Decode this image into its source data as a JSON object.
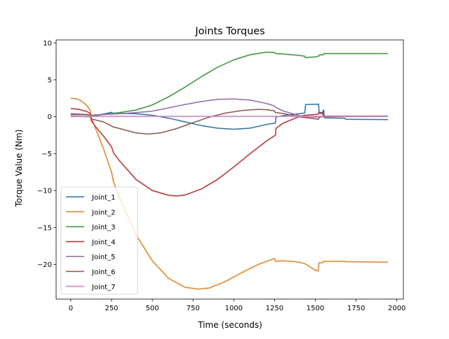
{
  "chart_data": {
    "type": "line",
    "title": "Joints Torques",
    "xlabel": "Time (seconds)",
    "ylabel": "Torque Value (Nm)",
    "xlim": [
      -90,
      2040
    ],
    "ylim": [
      -24.7,
      10.4
    ],
    "xticks": [
      0,
      250,
      500,
      750,
      1000,
      1250,
      1500,
      1750,
      2000
    ],
    "yticks": [
      10,
      5,
      0,
      -5,
      -10,
      -15,
      -20
    ],
    "grid": false,
    "legend_position": "lower-left",
    "series": [
      {
        "name": "Joint_1",
        "color": "#1f77b4",
        "points": [
          [
            0,
            0.1
          ],
          [
            120,
            0.0
          ],
          [
            150,
            0.2
          ],
          [
            200,
            0.35
          ],
          [
            250,
            0.6
          ],
          [
            262,
            0.4
          ],
          [
            300,
            0.45
          ],
          [
            400,
            0.4
          ],
          [
            500,
            0.2
          ],
          [
            600,
            -0.2
          ],
          [
            700,
            -0.7
          ],
          [
            800,
            -1.2
          ],
          [
            900,
            -1.55
          ],
          [
            1000,
            -1.7
          ],
          [
            1100,
            -1.55
          ],
          [
            1200,
            -1.05
          ],
          [
            1255,
            -0.85
          ],
          [
            1258,
            -0.05
          ],
          [
            1300,
            0.15
          ],
          [
            1400,
            0.4
          ],
          [
            1435,
            0.5
          ],
          [
            1440,
            1.65
          ],
          [
            1520,
            1.7
          ],
          [
            1523,
            0.45
          ],
          [
            1545,
            0.4
          ],
          [
            1548,
            0.9
          ],
          [
            1552,
            0.85
          ],
          [
            1556,
            -0.15
          ],
          [
            1680,
            -0.2
          ],
          [
            1685,
            -0.35
          ],
          [
            1945,
            -0.4
          ]
        ]
      },
      {
        "name": "Joint_2",
        "color": "#ff7f0e",
        "points": [
          [
            0,
            2.5
          ],
          [
            30,
            2.45
          ],
          [
            60,
            2.2
          ],
          [
            90,
            1.7
          ],
          [
            110,
            1.2
          ],
          [
            120,
            0.8
          ],
          [
            125,
            -0.1
          ],
          [
            150,
            -1.5
          ],
          [
            200,
            -4.3
          ],
          [
            250,
            -7.5
          ],
          [
            262,
            -8.8
          ],
          [
            300,
            -11
          ],
          [
            400,
            -16
          ],
          [
            500,
            -19.5
          ],
          [
            600,
            -21.9
          ],
          [
            700,
            -23.1
          ],
          [
            780,
            -23.35
          ],
          [
            850,
            -23.2
          ],
          [
            950,
            -22.3
          ],
          [
            1050,
            -21.1
          ],
          [
            1150,
            -20
          ],
          [
            1250,
            -19.2
          ],
          [
            1255,
            -19.6
          ],
          [
            1300,
            -19.5
          ],
          [
            1400,
            -19.7
          ],
          [
            1435,
            -19.9
          ],
          [
            1500,
            -20.8
          ],
          [
            1518,
            -20.9
          ],
          [
            1522,
            -19.8
          ],
          [
            1545,
            -19.8
          ],
          [
            1550,
            -19.6
          ],
          [
            1680,
            -19.6
          ],
          [
            1685,
            -19.65
          ],
          [
            1945,
            -19.7
          ]
        ]
      },
      {
        "name": "Joint_3",
        "color": "#2ca02c",
        "points": [
          [
            0,
            0.05
          ],
          [
            120,
            0.0
          ],
          [
            150,
            0.15
          ],
          [
            250,
            0.45
          ],
          [
            300,
            0.55
          ],
          [
            400,
            0.9
          ],
          [
            500,
            1.6
          ],
          [
            600,
            2.7
          ],
          [
            700,
            4.0
          ],
          [
            800,
            5.4
          ],
          [
            900,
            6.7
          ],
          [
            1000,
            7.7
          ],
          [
            1100,
            8.4
          ],
          [
            1200,
            8.75
          ],
          [
            1250,
            8.7
          ],
          [
            1255,
            8.55
          ],
          [
            1300,
            8.5
          ],
          [
            1400,
            8.3
          ],
          [
            1435,
            8.2
          ],
          [
            1440,
            8.0
          ],
          [
            1500,
            8.1
          ],
          [
            1520,
            8.2
          ],
          [
            1523,
            8.35
          ],
          [
            1550,
            8.4
          ],
          [
            1553,
            8.55
          ],
          [
            1945,
            8.55
          ]
        ]
      },
      {
        "name": "Joint_4",
        "color": "#d62728",
        "points": [
          [
            0,
            1.1
          ],
          [
            50,
            1.0
          ],
          [
            100,
            0.7
          ],
          [
            120,
            0.4
          ],
          [
            125,
            -0.5
          ],
          [
            150,
            -1.3
          ],
          [
            200,
            -2.6
          ],
          [
            250,
            -4.1
          ],
          [
            262,
            -4.9
          ],
          [
            300,
            -6.0
          ],
          [
            400,
            -8.5
          ],
          [
            500,
            -10.0
          ],
          [
            600,
            -10.65
          ],
          [
            650,
            -10.75
          ],
          [
            700,
            -10.6
          ],
          [
            800,
            -9.8
          ],
          [
            900,
            -8.5
          ],
          [
            1000,
            -6.8
          ],
          [
            1100,
            -5.0
          ],
          [
            1200,
            -3.3
          ],
          [
            1255,
            -2.5
          ],
          [
            1258,
            -1.6
          ],
          [
            1300,
            -0.9
          ],
          [
            1400,
            0.0
          ],
          [
            1435,
            0.2
          ],
          [
            1500,
            0.3
          ],
          [
            1518,
            0.35
          ],
          [
            1522,
            0.6
          ],
          [
            1545,
            0.55
          ],
          [
            1548,
            0.1
          ],
          [
            1945,
            0.05
          ]
        ]
      },
      {
        "name": "Joint_5",
        "color": "#9467bd",
        "points": [
          [
            0,
            0.3
          ],
          [
            100,
            0.25
          ],
          [
            120,
            0.2
          ],
          [
            200,
            0.3
          ],
          [
            300,
            0.4
          ],
          [
            400,
            0.55
          ],
          [
            500,
            0.75
          ],
          [
            600,
            1.2
          ],
          [
            700,
            1.65
          ],
          [
            800,
            2.05
          ],
          [
            900,
            2.35
          ],
          [
            1000,
            2.4
          ],
          [
            1100,
            2.25
          ],
          [
            1200,
            1.8
          ],
          [
            1250,
            1.45
          ],
          [
            1255,
            1.3
          ],
          [
            1300,
            0.8
          ],
          [
            1400,
            0.15
          ],
          [
            1435,
            0.0
          ],
          [
            1500,
            -0.05
          ],
          [
            1550,
            0.05
          ],
          [
            1945,
            0.1
          ]
        ]
      },
      {
        "name": "Joint_6",
        "color": "#8c564b",
        "points": [
          [
            0,
            0.4
          ],
          [
            100,
            0.3
          ],
          [
            120,
            0.2
          ],
          [
            125,
            -0.3
          ],
          [
            200,
            -0.7
          ],
          [
            262,
            -1.4
          ],
          [
            300,
            -1.6
          ],
          [
            400,
            -2.2
          ],
          [
            475,
            -2.35
          ],
          [
            550,
            -2.2
          ],
          [
            650,
            -1.6
          ],
          [
            750,
            -0.8
          ],
          [
            850,
            -0.05
          ],
          [
            950,
            0.5
          ],
          [
            1050,
            0.85
          ],
          [
            1150,
            1.0
          ],
          [
            1200,
            0.95
          ],
          [
            1250,
            0.8
          ],
          [
            1255,
            0.55
          ],
          [
            1300,
            0.45
          ],
          [
            1400,
            0.0
          ],
          [
            1435,
            -0.1
          ],
          [
            1500,
            -0.3
          ],
          [
            1520,
            -0.35
          ],
          [
            1522,
            -0.05
          ],
          [
            1550,
            0.0
          ],
          [
            1945,
            0.05
          ]
        ]
      },
      {
        "name": "Joint_7",
        "color": "#e377c2",
        "points": [
          [
            0,
            0.05
          ],
          [
            300,
            0.05
          ],
          [
            600,
            0.05
          ],
          [
            900,
            0.05
          ],
          [
            1200,
            0.05
          ],
          [
            1500,
            0.05
          ],
          [
            1945,
            0.05
          ]
        ]
      }
    ]
  }
}
